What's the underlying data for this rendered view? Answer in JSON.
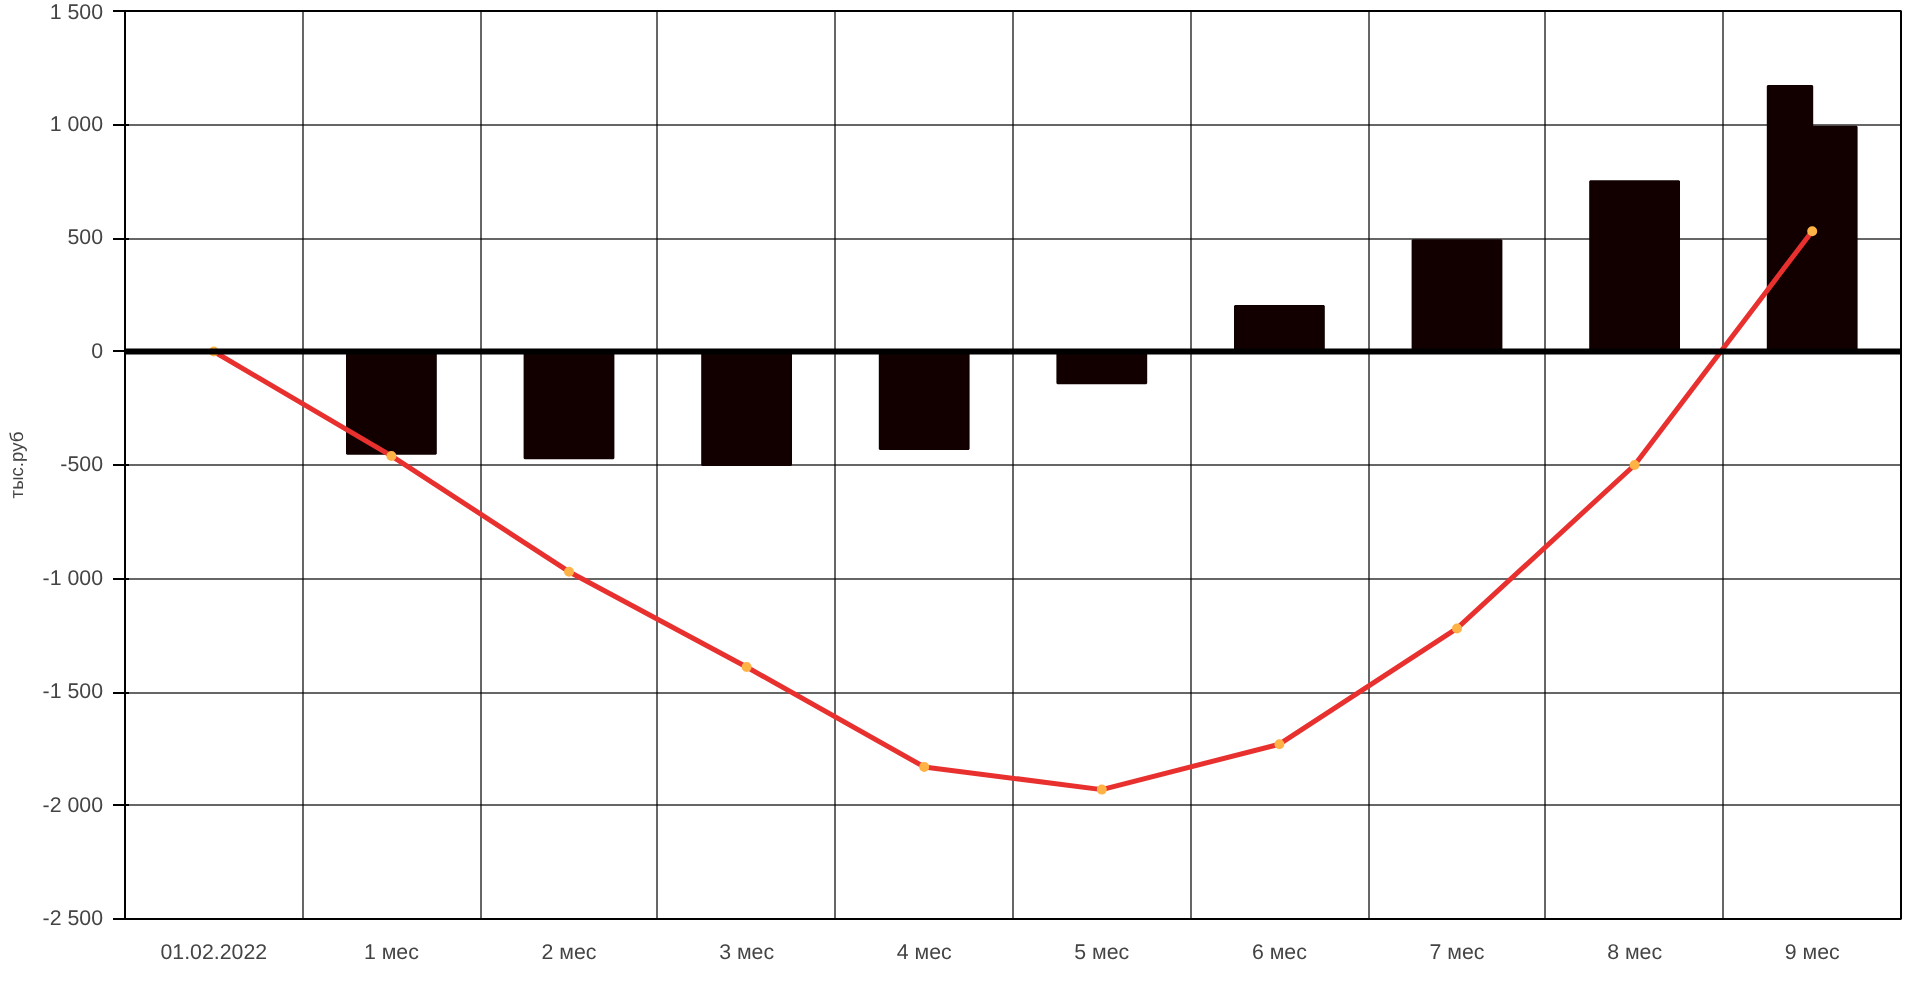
{
  "chart_data": {
    "type": "bar",
    "ylabel": "тыс.руб",
    "categories": [
      "01.02.2022",
      "1 мес",
      "2 мес",
      "3 мес",
      "4 мес",
      "5 мес",
      "6 мес",
      "7 мес",
      "8 мес",
      "9 мес"
    ],
    "series": [
      {
        "color": "#120000",
        "values": [
          null,
          -450,
          -470,
          -500,
          -430,
          -140,
          200,
          490,
          750,
          1170
        ]
      },
      {
        "color": "#120000",
        "values": [
          null,
          null,
          null,
          null,
          null,
          null,
          null,
          null,
          null,
          990
        ]
      },
      {
        "type": "line",
        "color": "#e8312f",
        "marker": "circle",
        "values": [
          0,
          -460,
          -970,
          -1390,
          -1830,
          -1930,
          -1730,
          -1220,
          -500,
          530
        ]
      }
    ],
    "ylim": [
      -2500,
      1500
    ],
    "yticks": [
      {
        "value": -2500,
        "label": "-2 500"
      },
      {
        "value": -2000,
        "label": "-2 000"
      },
      {
        "value": -1500,
        "label": "-1 500"
      },
      {
        "value": -1000,
        "label": "-1 000"
      },
      {
        "value": -500,
        "label": "-500"
      },
      0,
      500,
      {
        "value": 1000,
        "label": "1 000"
      },
      {
        "value": 1500,
        "label": "1 500"
      }
    ],
    "ref_lines": [
      {
        "axis": "y",
        "value": 0,
        "color": "#000000"
      }
    ],
    "grid": true
  }
}
